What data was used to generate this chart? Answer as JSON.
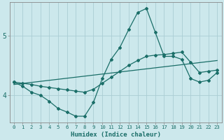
{
  "xlabel": "Humidex (Indice chaleur)",
  "bg_color": "#cce8ec",
  "grid_color": "#aacdd4",
  "line_color": "#1a6e68",
  "xlim": [
    -0.5,
    23.5
  ],
  "ylim": [
    3.55,
    5.55
  ],
  "yticks": [
    4,
    5
  ],
  "xtick_labels": [
    "0",
    "1",
    "2",
    "3",
    "4",
    "5",
    "6",
    "7",
    "8",
    "9",
    "10",
    "11",
    "12",
    "13",
    "14",
    "15",
    "16",
    "17",
    "18",
    "19",
    "20",
    "21",
    "22",
    "23"
  ],
  "line1_x": [
    0,
    1,
    2,
    3,
    4,
    5,
    6,
    7,
    8,
    9,
    10,
    11,
    12,
    13,
    14,
    15,
    16,
    17,
    18,
    19,
    20,
    21,
    22,
    23
  ],
  "line1_y": [
    4.22,
    4.15,
    4.05,
    4.0,
    3.9,
    3.78,
    3.72,
    3.65,
    3.65,
    3.88,
    4.28,
    4.6,
    4.8,
    5.1,
    5.38,
    5.45,
    5.05,
    4.65,
    4.65,
    4.6,
    4.28,
    4.22,
    4.25,
    4.38
  ],
  "line2_x": [
    0,
    1,
    2,
    3,
    4,
    5,
    6,
    7,
    8,
    9,
    10,
    11,
    12,
    13,
    14,
    15,
    16,
    17,
    18,
    19,
    20,
    21,
    22,
    23
  ],
  "line2_y": [
    4.22,
    4.2,
    4.18,
    4.15,
    4.13,
    4.11,
    4.09,
    4.07,
    4.05,
    4.1,
    4.2,
    4.3,
    4.4,
    4.5,
    4.58,
    4.65,
    4.67,
    4.68,
    4.7,
    4.72,
    4.55,
    4.38,
    4.4,
    4.42
  ],
  "line3_x": [
    0,
    23
  ],
  "line3_y": [
    4.18,
    4.58
  ]
}
